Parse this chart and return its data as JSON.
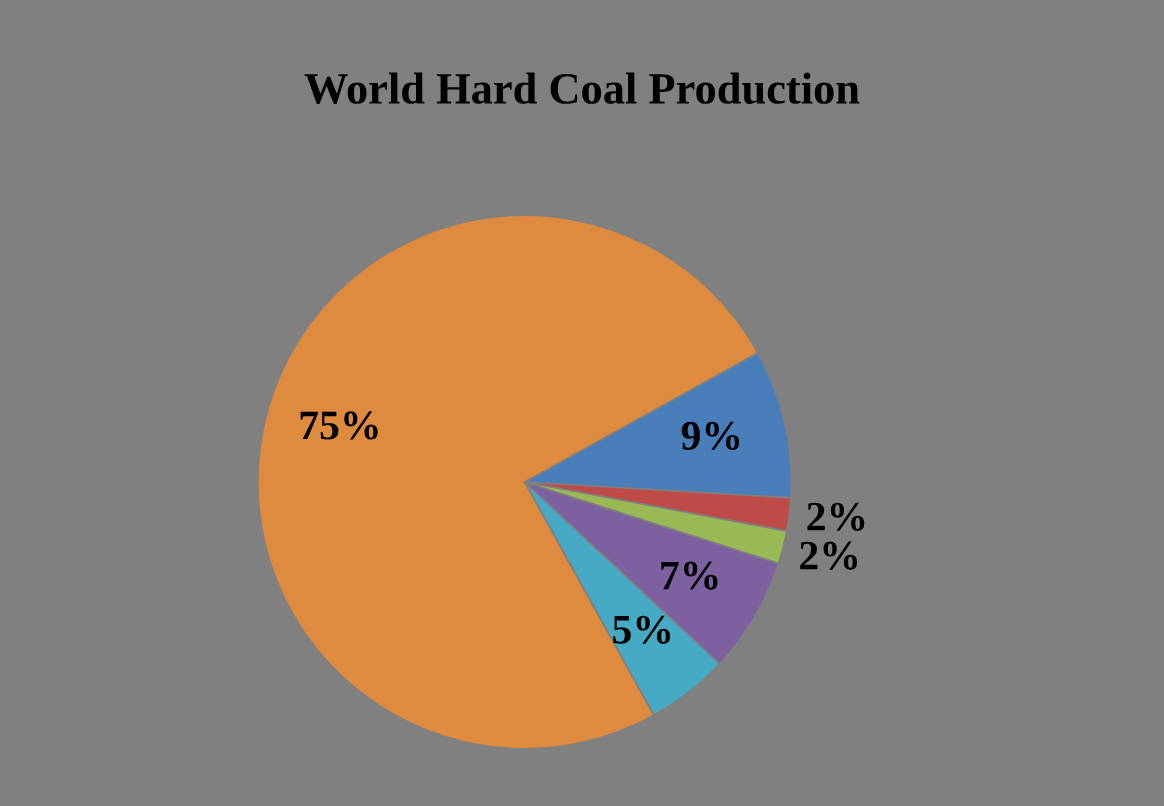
{
  "chart_data": {
    "type": "pie",
    "title": "World Hard Coal Production",
    "categories": [
      null,
      null,
      null,
      null,
      null,
      null
    ],
    "values": [
      9,
      2,
      2,
      7,
      5,
      75
    ],
    "value_labels": [
      "9%",
      "2%",
      "2%",
      "7%",
      "5%",
      "75%"
    ],
    "colors": [
      "#4a7ebb",
      "#be4b48",
      "#98b954",
      "#7d60a0",
      "#46aac5",
      "#de8a3f"
    ]
  }
}
